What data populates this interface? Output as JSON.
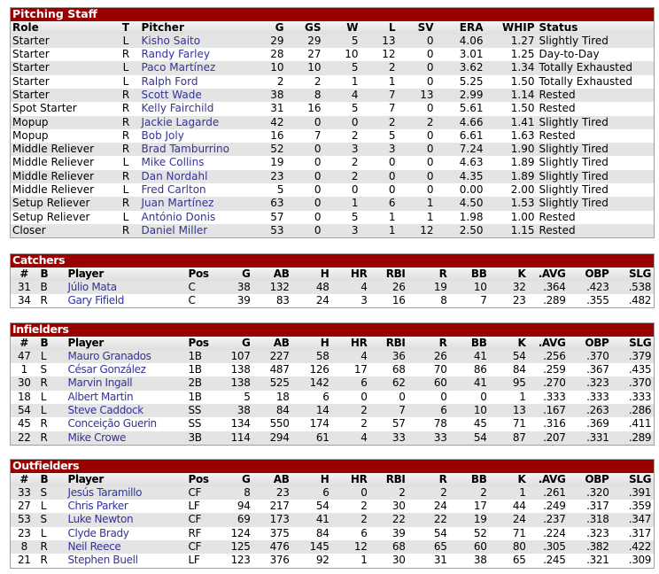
{
  "colors": {
    "title_bar": "#990000",
    "link": "#333399",
    "stripe": "#e4e4e4"
  },
  "pitching": {
    "title": "Pitching Staff",
    "headers": [
      "Role",
      "T",
      "Pitcher",
      "G",
      "GS",
      "W",
      "L",
      "SV",
      "ERA",
      "WHIP",
      "Status"
    ],
    "rows": [
      [
        "Starter",
        "L",
        "Kisho Saito",
        "29",
        "29",
        "5",
        "13",
        "0",
        "4.06",
        "1.27",
        "Slightly Tired"
      ],
      [
        "Starter",
        "R",
        "Randy Farley",
        "28",
        "27",
        "10",
        "12",
        "0",
        "3.01",
        "1.25",
        "Day-to-Day"
      ],
      [
        "Starter",
        "L",
        "Paco Martínez",
        "10",
        "10",
        "5",
        "2",
        "0",
        "3.62",
        "1.34",
        "Totally Exhausted"
      ],
      [
        "Starter",
        "L",
        "Ralph Ford",
        "2",
        "2",
        "1",
        "1",
        "0",
        "5.25",
        "1.50",
        "Totally Exhausted"
      ],
      [
        "Starter",
        "R",
        "Scott Wade",
        "38",
        "8",
        "4",
        "7",
        "13",
        "2.99",
        "1.14",
        "Rested"
      ],
      [
        "Spot Starter",
        "R",
        "Kelly Fairchild",
        "31",
        "16",
        "5",
        "7",
        "0",
        "5.61",
        "1.50",
        "Rested"
      ],
      [
        "Mopup",
        "R",
        "Jackie Lagarde",
        "42",
        "0",
        "0",
        "2",
        "2",
        "4.66",
        "1.41",
        "Slightly Tired"
      ],
      [
        "Mopup",
        "R",
        "Bob Joly",
        "16",
        "7",
        "2",
        "5",
        "0",
        "6.61",
        "1.63",
        "Rested"
      ],
      [
        "Middle Reliever",
        "R",
        "Brad Tamburrino",
        "52",
        "0",
        "3",
        "3",
        "0",
        "7.24",
        "1.90",
        "Slightly Tired"
      ],
      [
        "Middle Reliever",
        "L",
        "Mike Collins",
        "19",
        "0",
        "2",
        "0",
        "0",
        "4.63",
        "1.89",
        "Slightly Tired"
      ],
      [
        "Middle Reliever",
        "R",
        "Dan Nordahl",
        "23",
        "0",
        "2",
        "0",
        "0",
        "4.35",
        "1.89",
        "Slightly Tired"
      ],
      [
        "Middle Reliever",
        "L",
        "Fred Carlton",
        "5",
        "0",
        "0",
        "0",
        "0",
        "0.00",
        "2.00",
        "Slightly Tired"
      ],
      [
        "Setup Reliever",
        "R",
        "Juan Martínez",
        "63",
        "0",
        "1",
        "6",
        "1",
        "4.50",
        "1.53",
        "Slightly Tired"
      ],
      [
        "Setup Reliever",
        "L",
        "António Donis",
        "57",
        "0",
        "5",
        "1",
        "1",
        "1.98",
        "1.00",
        "Rested"
      ],
      [
        "Closer",
        "R",
        "Daniel Miller",
        "53",
        "0",
        "3",
        "1",
        "12",
        "2.50",
        "1.15",
        "Rested"
      ]
    ]
  },
  "batting_headers": [
    "#",
    "B",
    "Player",
    "Pos",
    "G",
    "AB",
    "H",
    "HR",
    "RBI",
    "R",
    "BB",
    "K",
    ".AVG",
    "OBP",
    "SLG"
  ],
  "catchers": {
    "title": "Catchers",
    "rows": [
      [
        "31",
        "B",
        "Júlio Mata",
        "C",
        "38",
        "132",
        "48",
        "4",
        "26",
        "19",
        "10",
        "32",
        ".364",
        ".423",
        ".538"
      ],
      [
        "34",
        "R",
        "Gary Fifield",
        "C",
        "39",
        "83",
        "24",
        "3",
        "16",
        "8",
        "7",
        "23",
        ".289",
        ".355",
        ".482"
      ]
    ]
  },
  "infielders": {
    "title": "Infielders",
    "rows": [
      [
        "47",
        "L",
        "Mauro Granados",
        "1B",
        "107",
        "227",
        "58",
        "4",
        "36",
        "26",
        "41",
        "54",
        ".256",
        ".370",
        ".379"
      ],
      [
        "1",
        "S",
        "César González",
        "1B",
        "138",
        "487",
        "126",
        "17",
        "68",
        "70",
        "86",
        "84",
        ".259",
        ".367",
        ".435"
      ],
      [
        "30",
        "R",
        "Marvin Ingall",
        "2B",
        "138",
        "525",
        "142",
        "6",
        "62",
        "60",
        "41",
        "95",
        ".270",
        ".323",
        ".370"
      ],
      [
        "18",
        "L",
        "Albert Martin",
        "1B",
        "5",
        "18",
        "6",
        "0",
        "0",
        "0",
        "0",
        "1",
        ".333",
        ".333",
        ".333"
      ],
      [
        "54",
        "L",
        "Steve Caddock",
        "SS",
        "38",
        "84",
        "14",
        "2",
        "7",
        "6",
        "10",
        "13",
        ".167",
        ".263",
        ".286"
      ],
      [
        "45",
        "R",
        "Conceição Guerin",
        "SS",
        "134",
        "550",
        "174",
        "2",
        "57",
        "78",
        "45",
        "71",
        ".316",
        ".369",
        ".411"
      ],
      [
        "22",
        "R",
        "Mike Crowe",
        "3B",
        "114",
        "294",
        "61",
        "4",
        "33",
        "33",
        "54",
        "87",
        ".207",
        ".331",
        ".289"
      ]
    ]
  },
  "outfielders": {
    "title": "Outfielders",
    "rows": [
      [
        "33",
        "S",
        "Jesús Taramillo",
        "CF",
        "8",
        "23",
        "6",
        "0",
        "2",
        "2",
        "2",
        "1",
        ".261",
        ".320",
        ".391"
      ],
      [
        "27",
        "L",
        "Chris Parker",
        "LF",
        "94",
        "217",
        "54",
        "2",
        "30",
        "24",
        "17",
        "44",
        ".249",
        ".317",
        ".359"
      ],
      [
        "53",
        "S",
        "Luke Newton",
        "CF",
        "69",
        "173",
        "41",
        "2",
        "22",
        "22",
        "19",
        "24",
        ".237",
        ".318",
        ".347"
      ],
      [
        "23",
        "L",
        "Clyde Brady",
        "RF",
        "124",
        "375",
        "84",
        "6",
        "39",
        "54",
        "52",
        "71",
        ".224",
        ".323",
        ".317"
      ],
      [
        "8",
        "R",
        "Neil Reece",
        "CF",
        "125",
        "476",
        "145",
        "12",
        "68",
        "65",
        "60",
        "80",
        ".305",
        ".382",
        ".422"
      ],
      [
        "21",
        "R",
        "Stephen Buell",
        "LF",
        "123",
        "376",
        "92",
        "1",
        "30",
        "31",
        "38",
        "65",
        ".245",
        ".321",
        ".309"
      ]
    ]
  }
}
